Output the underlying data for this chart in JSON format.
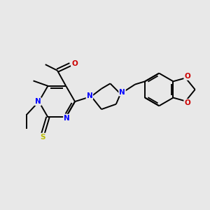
{
  "bg_color": "#e8e8e8",
  "bond_color": "#000000",
  "N_color": "#0000ff",
  "O_color": "#cc0000",
  "S_color": "#bbbb00",
  "line_width": 1.4,
  "figsize": [
    3.0,
    3.0
  ],
  "dpi": 100,
  "xlim": [
    0,
    12
  ],
  "ylim": [
    0,
    12
  ]
}
